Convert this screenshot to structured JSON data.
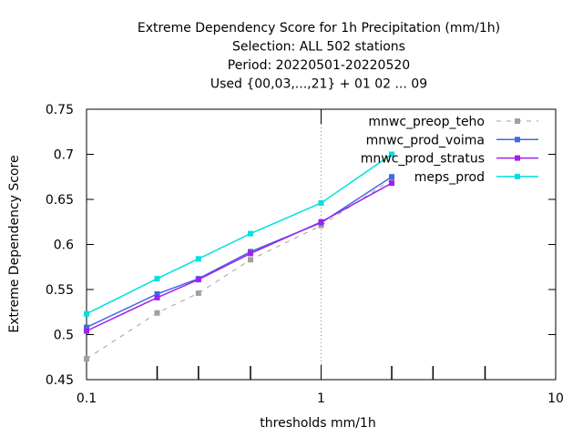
{
  "chart_data": {
    "type": "line",
    "title_lines": [
      "Extreme Dependency Score  for 1h Precipitation (mm/1h)",
      "Selection: ALL    502 stations",
      "Period: 20220501-20220520",
      "Used {00,03,...,21} + 01 02 ... 09"
    ],
    "xlabel": "thresholds mm/1h",
    "ylabel": "Extreme Dependency Score",
    "x_scale": "log",
    "xlim": [
      0.1,
      10
    ],
    "ylim": [
      0.45,
      0.75
    ],
    "x_ticks": [
      0.1,
      1,
      10
    ],
    "x_tick_labels": [
      "0.1",
      "1",
      "10"
    ],
    "y_ticks": [
      0.45,
      0.5,
      0.55,
      0.6,
      0.65,
      0.7,
      0.75
    ],
    "y_tick_labels": [
      "0.45",
      "0.5",
      "0.55",
      "0.6",
      "0.65",
      "0.7",
      "0.75"
    ],
    "x_minor_ticks": [
      0.2,
      0.3,
      0.5,
      2,
      3,
      5
    ],
    "grid": "dotted vertical line at x=1",
    "legend_position": "top-right",
    "series": [
      {
        "name": "mnwc_preop_teho",
        "color": "#a0a0a0",
        "dash": true,
        "x": [
          0.1,
          0.2,
          0.3,
          0.5,
          1,
          2
        ],
        "y": [
          0.473,
          0.524,
          0.546,
          0.583,
          0.621,
          0.672
        ]
      },
      {
        "name": "mnwc_prod_voima",
        "color": "#4169e1",
        "dash": false,
        "x": [
          0.1,
          0.2,
          0.3,
          0.5,
          1,
          2
        ],
        "y": [
          0.508,
          0.545,
          0.562,
          0.592,
          0.624,
          0.675
        ]
      },
      {
        "name": "mnwc_prod_stratus",
        "color": "#a020f0",
        "dash": false,
        "x": [
          0.1,
          0.2,
          0.3,
          0.5,
          1,
          2
        ],
        "y": [
          0.504,
          0.541,
          0.561,
          0.59,
          0.625,
          0.668
        ]
      },
      {
        "name": "meps_prod",
        "color": "#00e0e0",
        "dash": false,
        "x": [
          0.1,
          0.2,
          0.3,
          0.5,
          1,
          2
        ],
        "y": [
          0.523,
          0.562,
          0.584,
          0.612,
          0.646,
          0.7
        ]
      }
    ]
  }
}
